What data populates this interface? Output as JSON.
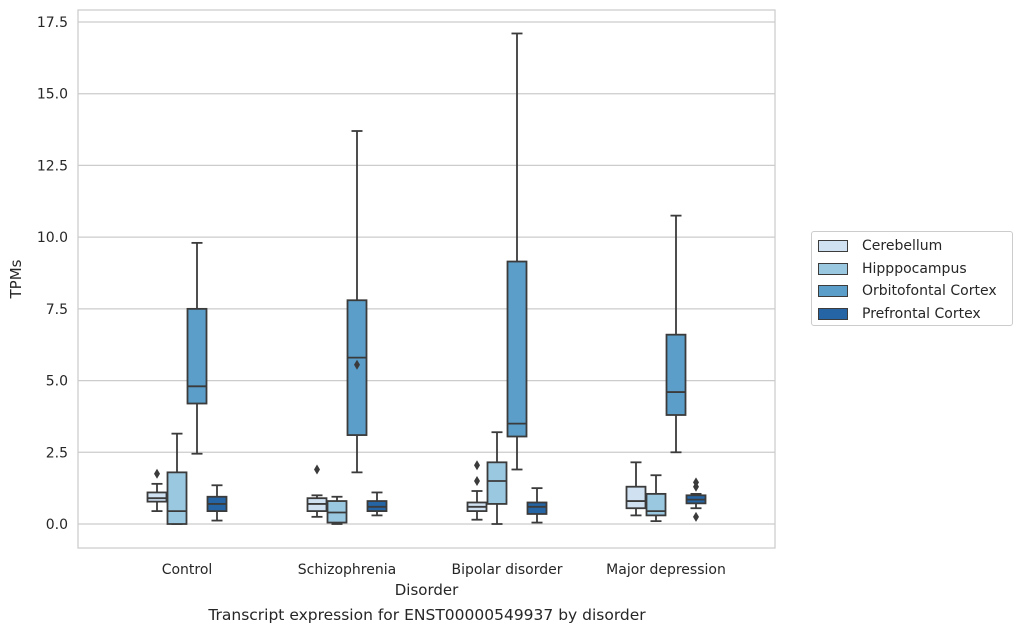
{
  "chart_data": {
    "type": "box",
    "xlabel": "Disorder",
    "ylabel": "TPMs",
    "ylim": [
      -0.8,
      18.0
    ],
    "yticks": [
      0.0,
      2.5,
      5.0,
      7.5,
      10.0,
      12.5,
      15.0,
      17.5
    ],
    "ytick_labels": [
      "0.0",
      "2.5",
      "5.0",
      "7.5",
      "10.0",
      "12.5",
      "15.0",
      "17.5"
    ],
    "grid": "horizontal",
    "legend_position": "right",
    "categories": [
      "Control",
      "Schizophrenia",
      "Bipolar disorder",
      "Major depression"
    ],
    "series": [
      {
        "name": "Cerebellum",
        "color": "#d0e1f2",
        "boxes": [
          {
            "whisker_low": 0.45,
            "q1": 0.78,
            "median": 0.9,
            "q3": 1.1,
            "whisker_high": 1.4,
            "outliers": [
              1.75
            ]
          },
          {
            "whisker_low": 0.25,
            "q1": 0.45,
            "median": 0.7,
            "q3": 0.9,
            "whisker_high": 1.0,
            "outliers": [
              1.9
            ]
          },
          {
            "whisker_low": 0.15,
            "q1": 0.45,
            "median": 0.6,
            "q3": 0.75,
            "whisker_high": 1.15,
            "outliers": [
              1.5,
              2.05
            ]
          },
          {
            "whisker_low": 0.3,
            "q1": 0.55,
            "median": 0.8,
            "q3": 1.3,
            "whisker_high": 2.15,
            "outliers": []
          }
        ]
      },
      {
        "name": "Hipppocampus",
        "color": "#9ac8e0",
        "boxes": [
          {
            "whisker_low": 0.0,
            "q1": 0.0,
            "median": 0.45,
            "q3": 1.8,
            "whisker_high": 3.15,
            "outliers": []
          },
          {
            "whisker_low": 0.0,
            "q1": 0.05,
            "median": 0.4,
            "q3": 0.8,
            "whisker_high": 0.95,
            "outliers": []
          },
          {
            "whisker_low": 0.0,
            "q1": 0.7,
            "median": 1.5,
            "q3": 2.15,
            "whisker_high": 3.2,
            "outliers": []
          },
          {
            "whisker_low": 0.1,
            "q1": 0.3,
            "median": 0.45,
            "q3": 1.05,
            "whisker_high": 1.7,
            "outliers": []
          }
        ]
      },
      {
        "name": "Orbitofontal Cortex",
        "color": "#5a9ec9",
        "boxes": [
          {
            "whisker_low": 2.45,
            "q1": 4.2,
            "median": 4.8,
            "q3": 7.5,
            "whisker_high": 9.8,
            "outliers": []
          },
          {
            "whisker_low": 1.8,
            "q1": 3.1,
            "median": 5.8,
            "q3": 7.8,
            "whisker_high": 13.7,
            "outliers": [
              5.55
            ]
          },
          {
            "whisker_low": 1.9,
            "q1": 3.05,
            "median": 3.5,
            "q3": 9.15,
            "whisker_high": 17.1,
            "outliers": []
          },
          {
            "whisker_low": 2.5,
            "q1": 3.8,
            "median": 4.6,
            "q3": 6.6,
            "whisker_high": 10.75,
            "outliers": []
          }
        ]
      },
      {
        "name": "Prefrontal Cortex",
        "color": "#2565a5",
        "boxes": [
          {
            "whisker_low": 0.12,
            "q1": 0.45,
            "median": 0.7,
            "q3": 0.95,
            "whisker_high": 1.35,
            "outliers": []
          },
          {
            "whisker_low": 0.3,
            "q1": 0.45,
            "median": 0.6,
            "q3": 0.8,
            "whisker_high": 1.1,
            "outliers": []
          },
          {
            "whisker_low": 0.05,
            "q1": 0.35,
            "median": 0.6,
            "q3": 0.75,
            "whisker_high": 1.25,
            "outliers": []
          },
          {
            "whisker_low": 0.55,
            "q1": 0.72,
            "median": 0.85,
            "q3": 1.0,
            "whisker_high": 1.05,
            "outliers": [
              1.3,
              1.45,
              0.25
            ]
          }
        ]
      }
    ]
  },
  "caption": "Transcript expression for ENST00000549937 by disorder"
}
